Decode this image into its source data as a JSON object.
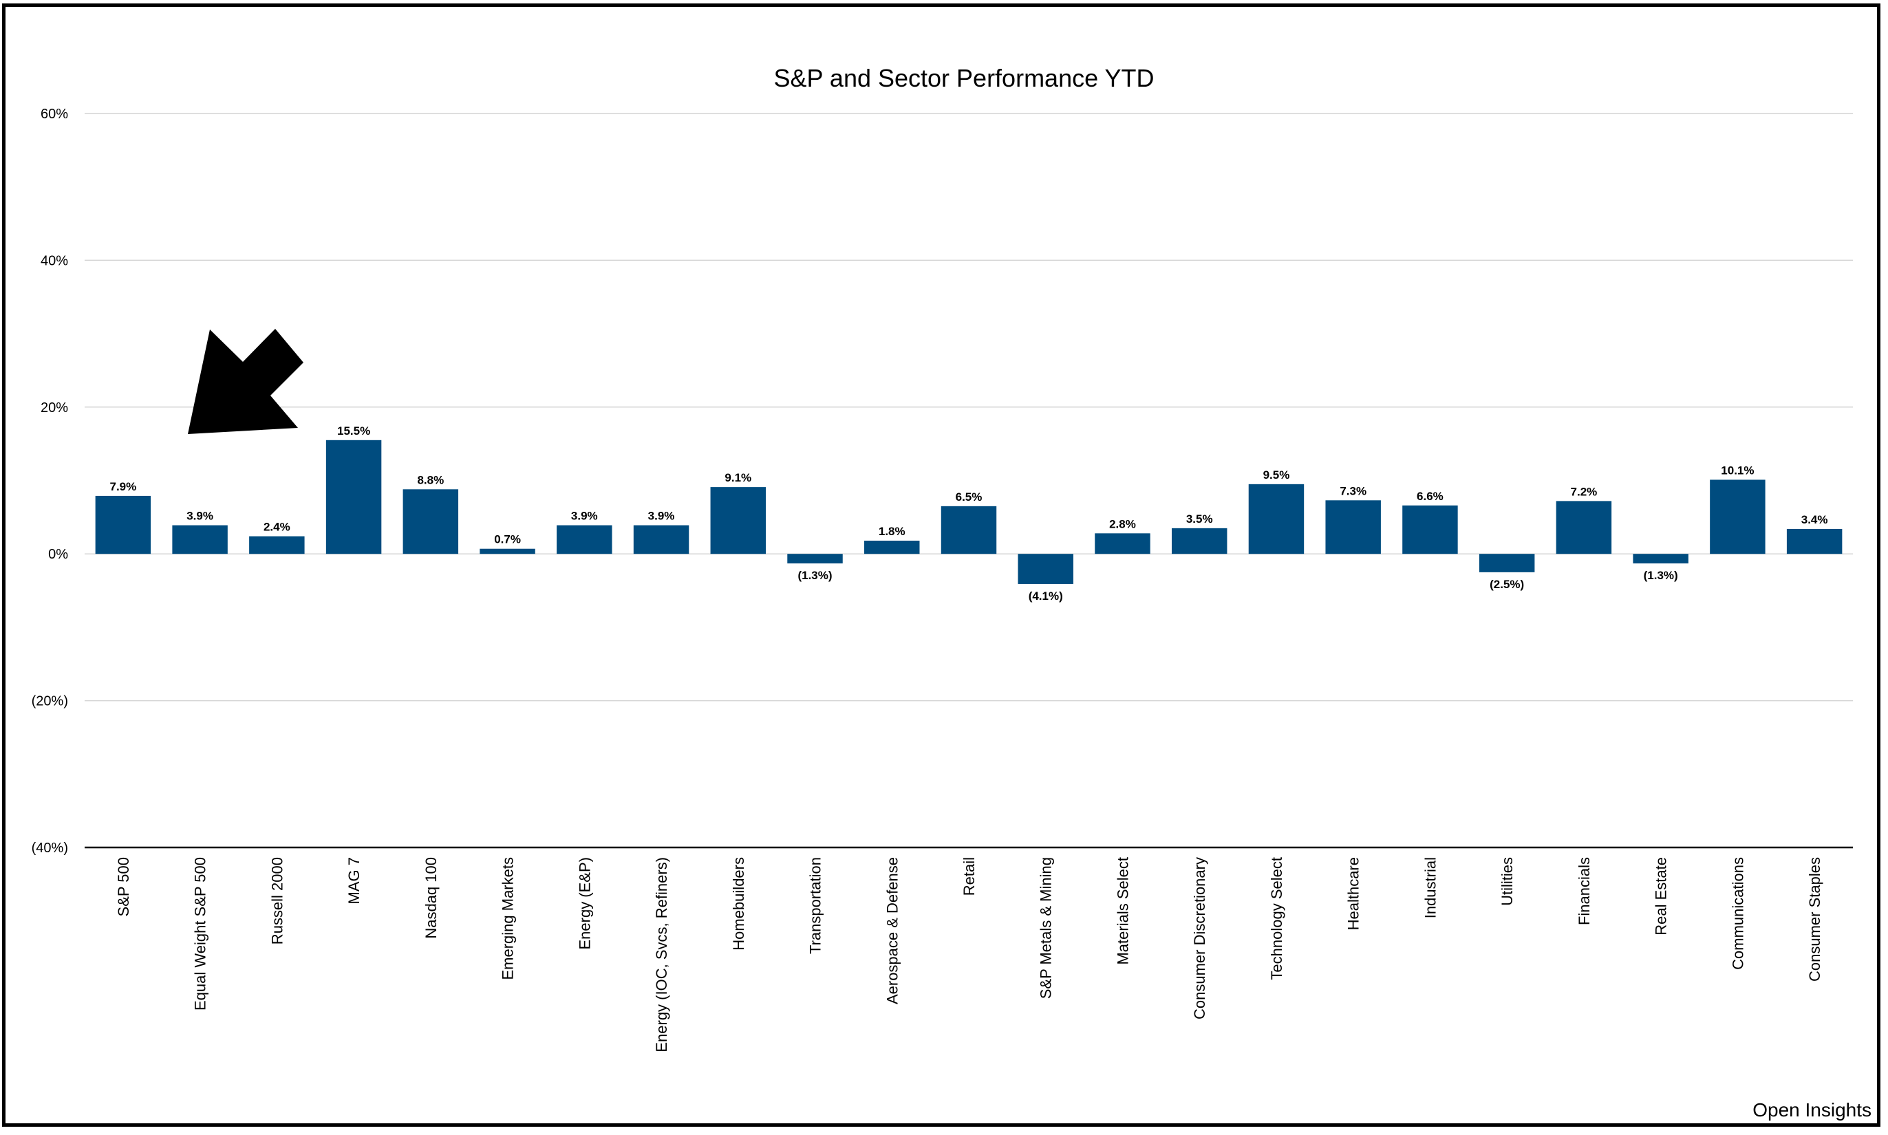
{
  "chart_data": {
    "type": "bar",
    "title": "S&P and Sector Performance YTD",
    "xlabel": "",
    "ylabel": "",
    "ylim": [
      -40,
      60
    ],
    "yticks": [
      60,
      40,
      20,
      0,
      -20,
      -40
    ],
    "ytick_labels": [
      "60%",
      "40%",
      "20%",
      "0%",
      "(20%)",
      "(40%)"
    ],
    "grid": true,
    "categories": [
      "S&P 500",
      "Equal Weight S&P 500",
      "Russell 2000",
      "MAG 7",
      "Nasdaq 100",
      "Emerging Markets",
      "Energy (E&P)",
      "Energy (IOC, Svcs, Refiners)",
      "Homebuilders",
      "Transportation",
      "Aerospace & Defense",
      "Retail",
      "S&P Metals & Mining",
      "Materials Select",
      "Consumer Discretionary",
      "Technology Select",
      "Healthcare",
      "Industrial",
      "Utilities",
      "Financials",
      "Real Estate",
      "Communications",
      "Consumer Staples"
    ],
    "values": [
      7.9,
      3.9,
      2.4,
      15.5,
      8.8,
      0.7,
      3.9,
      3.9,
      9.1,
      -1.3,
      1.8,
      6.5,
      -4.1,
      2.8,
      3.5,
      9.5,
      7.3,
      6.6,
      -2.5,
      7.2,
      -1.3,
      10.1,
      3.4
    ],
    "value_labels": [
      "7.9%",
      "3.9%",
      "2.4%",
      "15.5%",
      "8.8%",
      "0.7%",
      "3.9%",
      "3.9%",
      "9.1%",
      "(1.3%)",
      "1.8%",
      "6.5%",
      "(4.1%)",
      "2.8%",
      "3.5%",
      "9.5%",
      "7.3%",
      "6.6%",
      "(2.5%)",
      "7.2%",
      "(1.3%)",
      "10.1%",
      "3.4%"
    ],
    "bar_color": "#004c7f",
    "annotation": {
      "shape": "arrow",
      "points_to": "Equal Weight S&P 500",
      "color": "#000000"
    }
  },
  "watermark": "Open Insights"
}
